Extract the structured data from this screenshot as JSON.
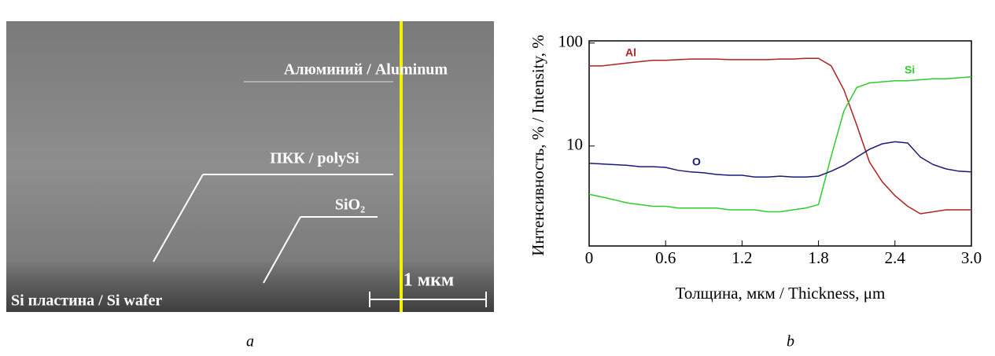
{
  "panel_a": {
    "labels": [
      "Алюминий / Aluminum",
      "ПКК / polySi",
      "SiO₂",
      "Si пластина / Si wafer"
    ],
    "scale_bar": "1 мкм",
    "caption": "a"
  },
  "chart_data": {
    "type": "line",
    "caption": "b",
    "x_label": "Толщина, мкм / Thickness, μm",
    "y_label": "Интенсивность, % / Intensity, %",
    "log_y": true,
    "xlim": [
      0,
      3
    ],
    "xticks": [
      0,
      0.6,
      1.2,
      1.8,
      2.4,
      {
        "value": 3,
        "label": "3.0"
      }
    ],
    "ylim": [
      1.07,
      105
    ],
    "yticks": [
      10,
      100
    ],
    "x": [
      0,
      0.1,
      0.2,
      0.3,
      0.4,
      0.5,
      0.6,
      0.7,
      0.8,
      0.9,
      1.0,
      1.1,
      1.2,
      1.3,
      1.4,
      1.5,
      1.6,
      1.7,
      1.8,
      1.9,
      2.0,
      2.1,
      2.2,
      2.3,
      2.4,
      2.5,
      2.6,
      2.7,
      2.8,
      2.9,
      3.0
    ],
    "series": [
      {
        "name": "Al",
        "color": "#b22222",
        "values": [
          60,
          60,
          62,
          64,
          66,
          68,
          68,
          69,
          70,
          70,
          70,
          69,
          69,
          69,
          69,
          70,
          70,
          71,
          71,
          60,
          35,
          16,
          7,
          4.5,
          3.3,
          2.6,
          2.2,
          2.3,
          2.4,
          2.4,
          2.4
        ]
      },
      {
        "name": "Si",
        "color": "#2ecc2e",
        "values": [
          3.4,
          3.2,
          3.0,
          2.8,
          2.7,
          2.6,
          2.6,
          2.5,
          2.5,
          2.5,
          2.5,
          2.4,
          2.4,
          2.4,
          2.3,
          2.3,
          2.4,
          2.5,
          2.7,
          8,
          22,
          37,
          41,
          42,
          43,
          43,
          44,
          45,
          45,
          46,
          47
        ]
      },
      {
        "name": "O",
        "color": "#1a1a78",
        "values": [
          6.8,
          6.7,
          6.6,
          6.5,
          6.3,
          6.3,
          6.2,
          5.8,
          5.6,
          5.5,
          5.3,
          5.2,
          5.2,
          5.0,
          5.0,
          5.1,
          5.0,
          5.0,
          5.1,
          5.7,
          6.5,
          7.8,
          9.3,
          10.5,
          11,
          10.7,
          7.8,
          6.6,
          6.0,
          5.7,
          5.6
        ]
      }
    ]
  }
}
